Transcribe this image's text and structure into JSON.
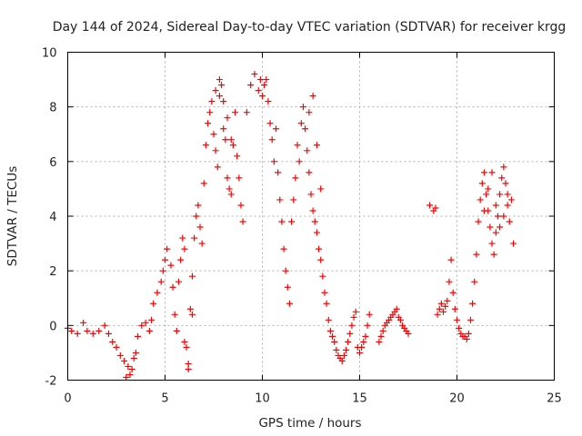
{
  "chart_data": {
    "type": "scatter",
    "title": "Day 144 of 2024, Sidereal Day-to-day VTEC variation (SDTVAR) for receiver krgg",
    "xlabel": "GPS time / hours",
    "ylabel": "SDTVAR / TECUs",
    "xlim": [
      0,
      25
    ],
    "ylim": [
      -2,
      10
    ],
    "x_ticks": [
      0,
      5,
      10,
      15,
      20,
      25
    ],
    "y_ticks": [
      -2,
      0,
      2,
      4,
      6,
      8,
      10
    ],
    "grid": true,
    "marker": "+",
    "color": "#ff0000",
    "series": [
      {
        "name": "SDTVAR",
        "x": [
          0.0,
          0.2,
          0.5,
          0.8,
          1.0,
          1.3,
          1.6,
          1.9,
          2.1,
          2.3,
          2.5,
          2.7,
          2.9,
          3.1,
          3.3,
          3.5,
          3.6,
          3.8,
          4.0,
          4.2,
          4.3,
          4.4,
          4.6,
          4.8,
          4.9,
          5.0,
          5.1,
          5.3,
          5.4,
          5.5,
          5.6,
          5.7,
          5.8,
          5.9,
          6.0,
          6.1,
          6.2,
          6.3,
          6.4,
          6.5,
          6.6,
          6.7,
          6.8,
          6.9,
          7.0,
          7.1,
          7.2,
          7.3,
          7.4,
          7.5,
          7.6,
          7.7,
          7.8,
          7.9,
          8.0,
          8.1,
          8.2,
          8.3,
          8.4,
          8.5,
          8.6,
          8.7,
          8.8,
          8.9,
          9.0,
          9.2,
          9.4,
          9.6,
          9.8,
          9.9,
          10.0,
          10.1,
          10.2,
          10.3,
          10.4,
          10.5,
          10.6,
          10.7,
          10.8,
          10.9,
          11.0,
          11.1,
          11.2,
          11.3,
          11.4,
          11.5,
          11.6,
          11.7,
          11.8,
          11.9,
          12.0,
          12.1,
          12.2,
          12.3,
          12.4,
          12.5,
          12.6,
          12.7,
          12.8,
          12.9,
          13.0,
          13.1,
          13.2,
          13.3,
          13.4,
          13.5,
          13.6,
          13.7,
          13.8,
          13.9,
          14.0,
          14.1,
          14.2,
          14.3,
          14.4,
          14.5,
          14.6,
          14.7,
          14.8,
          14.9,
          15.0,
          15.1,
          15.2,
          15.3,
          15.4,
          15.5,
          16.0,
          16.1,
          16.2,
          16.3,
          16.4,
          16.5,
          16.6,
          16.7,
          16.8,
          16.9,
          17.0,
          17.1,
          17.2,
          17.3,
          17.4,
          17.5,
          18.6,
          18.8,
          18.9,
          19.0,
          19.1,
          19.2,
          19.3,
          19.4,
          19.5,
          19.6,
          19.7,
          19.8,
          19.9,
          20.0,
          20.1,
          20.2,
          20.3,
          20.4,
          20.5,
          20.6,
          20.7,
          20.8,
          20.9,
          21.0,
          21.1,
          21.2,
          21.3,
          21.4,
          21.5,
          21.6,
          21.7,
          21.8,
          21.9,
          22.0,
          22.1,
          22.2,
          22.3,
          22.4,
          22.5,
          22.6,
          22.7,
          22.8,
          22.9,
          3.0,
          3.2,
          3.4,
          6.0,
          6.2,
          6.4,
          7.6,
          7.8,
          8.0,
          8.2,
          8.4,
          12.4,
          12.6,
          12.8,
          13.0,
          21.4,
          21.6,
          21.8,
          22.0,
          22.2,
          22.4,
          22.6
        ],
        "y": [
          -0.1,
          -0.2,
          -0.3,
          0.1,
          -0.2,
          -0.3,
          -0.2,
          0.0,
          -0.3,
          -0.6,
          -0.8,
          -1.1,
          -1.3,
          -1.5,
          -1.6,
          -1.0,
          -0.4,
          0.0,
          0.1,
          -0.2,
          0.2,
          0.8,
          1.2,
          1.6,
          2.0,
          2.4,
          2.8,
          2.2,
          1.4,
          0.4,
          -0.2,
          1.6,
          2.4,
          3.2,
          2.8,
          -0.8,
          -1.4,
          0.6,
          1.8,
          3.2,
          4.0,
          4.4,
          3.6,
          3.0,
          5.2,
          6.6,
          7.4,
          7.8,
          8.2,
          7.0,
          6.4,
          5.8,
          8.4,
          8.8,
          7.2,
          6.8,
          5.4,
          5.0,
          4.8,
          6.6,
          7.8,
          6.2,
          5.4,
          4.4,
          3.8,
          7.8,
          8.8,
          9.2,
          8.6,
          9.0,
          8.4,
          8.8,
          9.0,
          8.2,
          7.4,
          6.8,
          6.0,
          7.2,
          5.6,
          4.6,
          3.8,
          2.8,
          2.0,
          1.4,
          0.8,
          3.8,
          4.6,
          5.4,
          6.6,
          6.0,
          7.4,
          8.0,
          7.2,
          6.4,
          5.6,
          4.8,
          4.2,
          3.8,
          3.4,
          2.8,
          2.4,
          1.8,
          1.2,
          0.8,
          0.2,
          -0.2,
          -0.4,
          -0.6,
          -0.9,
          -1.1,
          -1.2,
          -1.3,
          -1.1,
          -0.9,
          -0.6,
          -0.3,
          0.0,
          0.3,
          0.5,
          -0.8,
          -1.0,
          -0.8,
          -0.6,
          -0.4,
          0.0,
          0.4,
          -0.6,
          -0.4,
          -0.2,
          0.0,
          0.1,
          0.2,
          0.3,
          0.4,
          0.5,
          0.6,
          0.3,
          0.2,
          0.0,
          -0.1,
          -0.2,
          -0.3,
          4.4,
          4.2,
          4.3,
          0.4,
          0.6,
          0.8,
          0.5,
          0.7,
          0.9,
          1.6,
          2.4,
          1.2,
          0.6,
          0.2,
          -0.1,
          -0.3,
          -0.4,
          -0.4,
          -0.5,
          -0.3,
          0.2,
          0.8,
          1.6,
          2.6,
          3.8,
          4.6,
          5.2,
          5.6,
          4.8,
          4.2,
          3.6,
          3.0,
          2.6,
          3.4,
          4.0,
          4.8,
          5.4,
          5.8,
          5.2,
          4.4,
          3.8,
          4.6,
          3.0,
          -1.9,
          -1.8,
          -1.2,
          -0.6,
          -1.6,
          0.4,
          8.6,
          9.0,
          8.2,
          7.6,
          6.8,
          7.8,
          8.4,
          6.6,
          5.0,
          4.2,
          5.0,
          5.6,
          4.4,
          3.6,
          4.0,
          4.8
        ]
      }
    ]
  }
}
